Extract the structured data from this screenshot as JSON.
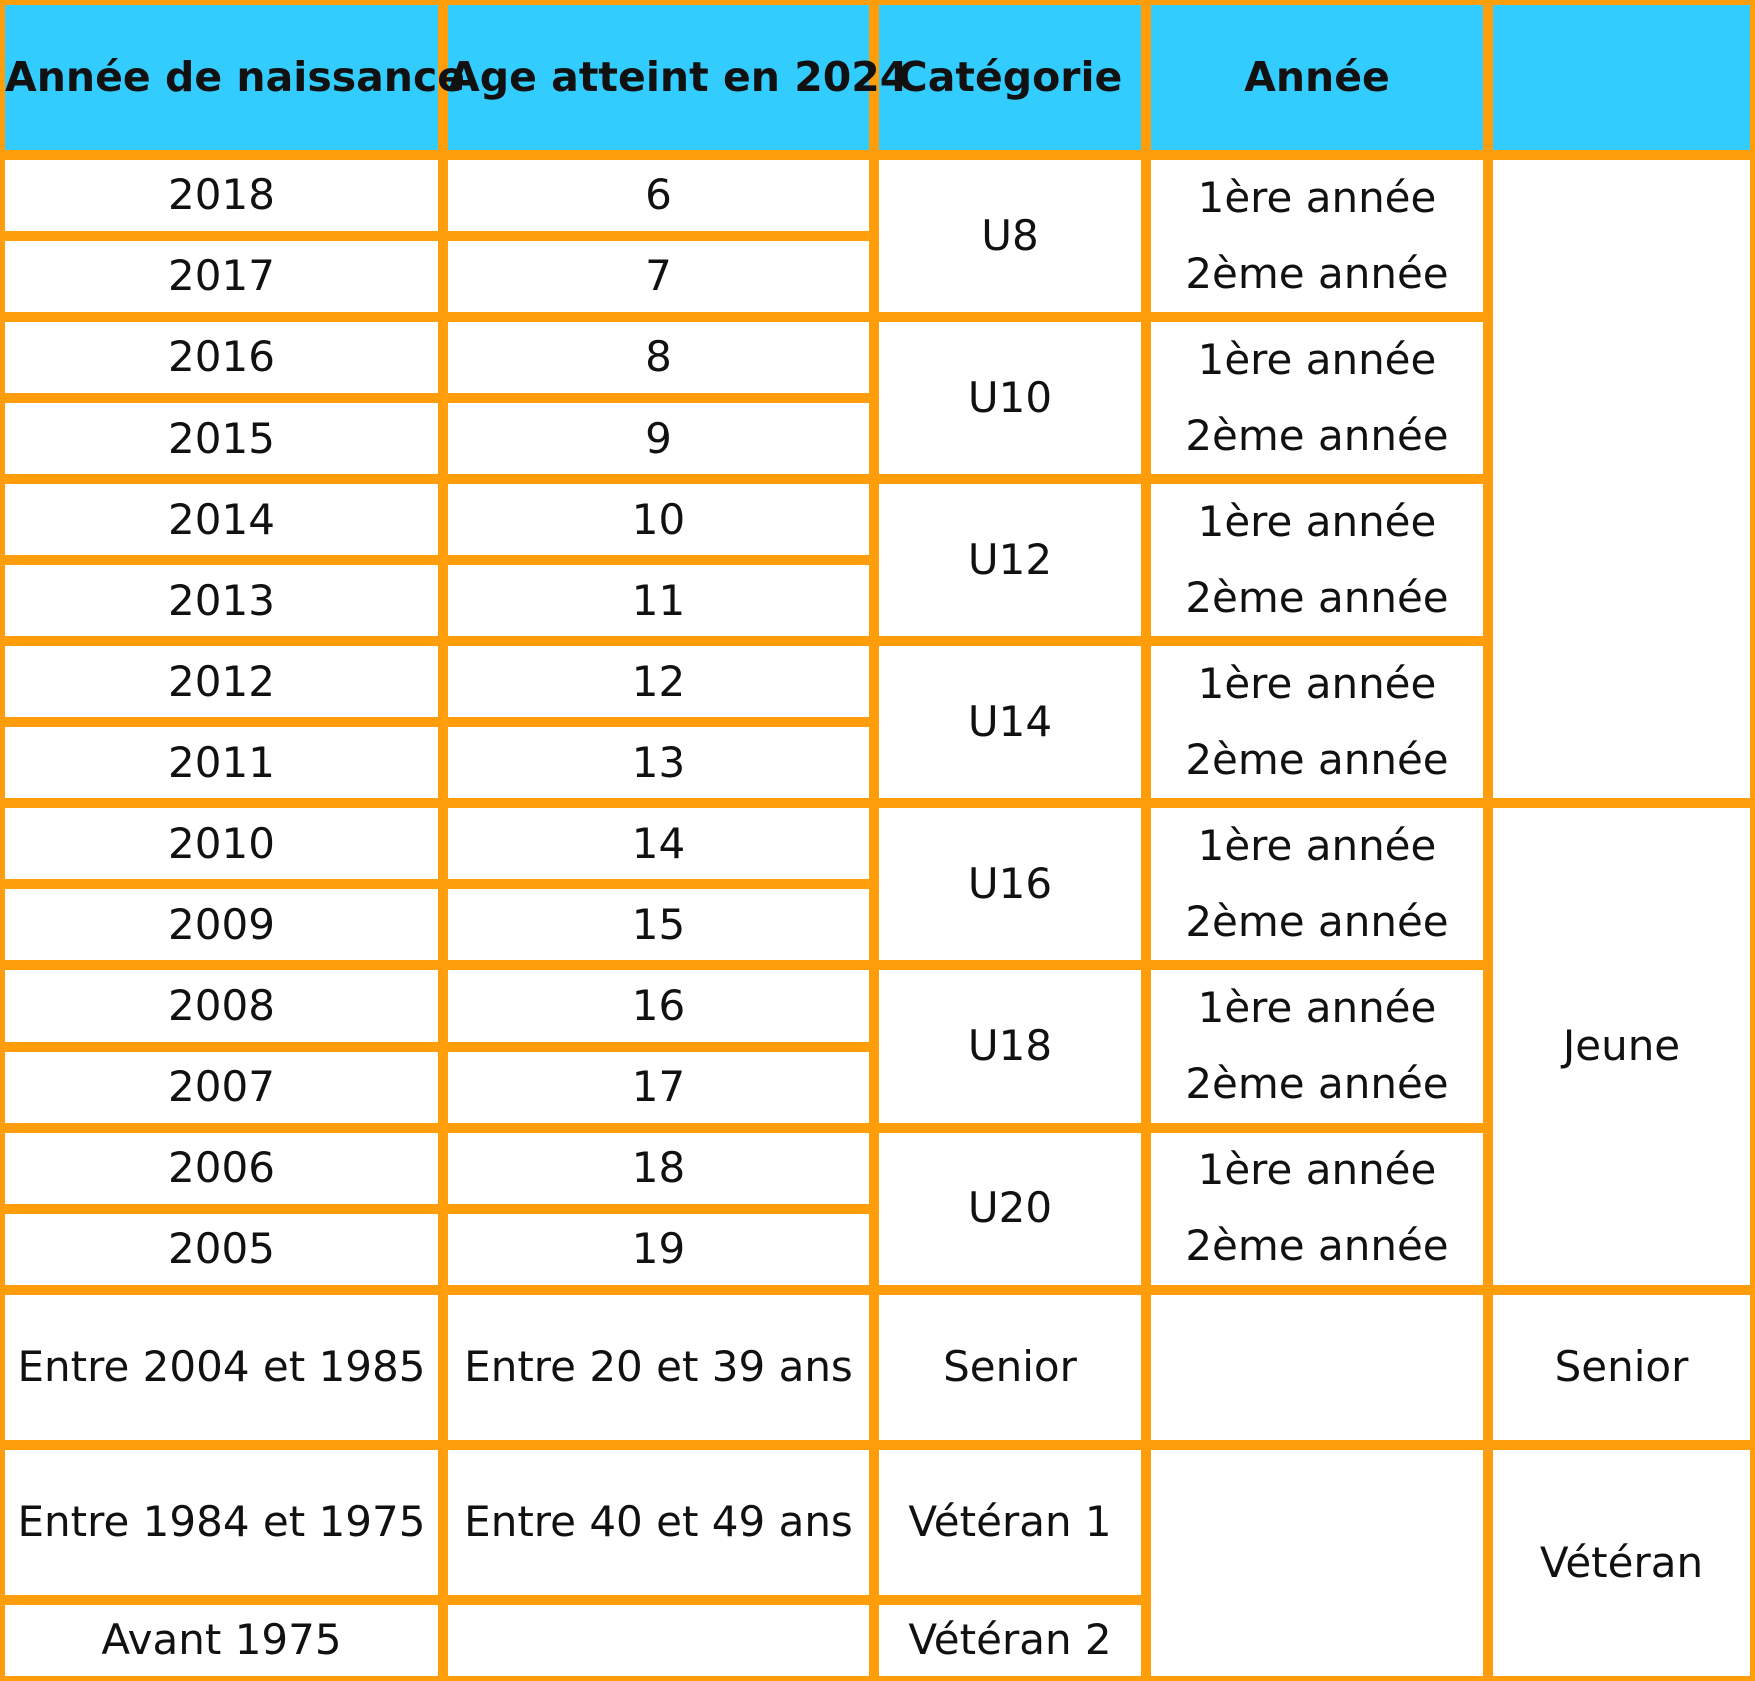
{
  "headers": {
    "birth_year": "Année de naissance",
    "age_2024": "Age atteint en 2024",
    "category": "Catégorie",
    "year": "Année",
    "group": ""
  },
  "rows": [
    {
      "birth_year": "2018",
      "age": "6"
    },
    {
      "birth_year": "2017",
      "age": "7"
    },
    {
      "birth_year": "2016",
      "age": "8"
    },
    {
      "birth_year": "2015",
      "age": "9"
    },
    {
      "birth_year": "2014",
      "age": "10"
    },
    {
      "birth_year": "2013",
      "age": "11"
    },
    {
      "birth_year": "2012",
      "age": "12"
    },
    {
      "birth_year": "2011",
      "age": "13"
    },
    {
      "birth_year": "2010",
      "age": "14"
    },
    {
      "birth_year": "2009",
      "age": "15"
    },
    {
      "birth_year": "2008",
      "age": "16"
    },
    {
      "birth_year": "2007",
      "age": "17"
    },
    {
      "birth_year": "2006",
      "age": "18"
    },
    {
      "birth_year": "2005",
      "age": "19"
    }
  ],
  "categories": [
    "U8",
    "U10",
    "U12",
    "U14",
    "U16",
    "U18",
    "U20"
  ],
  "year_labels": {
    "first": "1ère année",
    "second": "2ème année"
  },
  "groups": {
    "jeune": "Jeune",
    "senior": "Senior",
    "veteran": "Vétéran"
  },
  "senior_row": {
    "birth_year": "Entre 2004 et 1985",
    "age": "Entre 20 et 39 ans",
    "category": "Senior"
  },
  "veteran1_row": {
    "birth_year": "Entre 1984 et 1975",
    "age": "Entre 40 et 49 ans",
    "category": "Vétéran 1"
  },
  "veteran2_row": {
    "birth_year": "Avant 1975",
    "age": "",
    "category": "Vétéran 2"
  },
  "colors": {
    "header_bg": "#33CCFF",
    "border": "#FF9D0A",
    "cell_bg": "#FFFFFF",
    "text": "#111111"
  }
}
